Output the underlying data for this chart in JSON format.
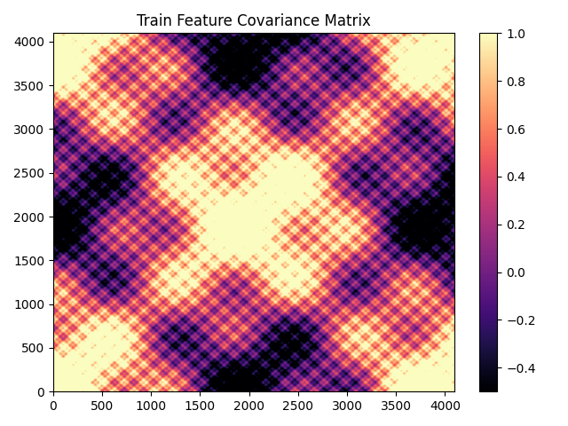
{
  "title": "Train Feature Covariance Matrix",
  "n_features": 4096,
  "colormap": "magma",
  "vmin": -0.5,
  "vmax": 1.0,
  "colorbar_ticks": [
    -0.4,
    -0.2,
    0.0,
    0.2,
    0.4,
    0.6,
    0.8,
    1.0
  ],
  "xlim": [
    0,
    4096
  ],
  "ylim": [
    0,
    4096
  ],
  "xticks": [
    0,
    500,
    1000,
    1500,
    2000,
    2500,
    3000,
    3500,
    4000
  ],
  "yticks": [
    0,
    500,
    1000,
    1500,
    2000,
    2500,
    3000,
    3500,
    4000
  ],
  "figsize": [
    6.4,
    4.8
  ],
  "dpi": 100,
  "seed": 42,
  "resolution": 512
}
